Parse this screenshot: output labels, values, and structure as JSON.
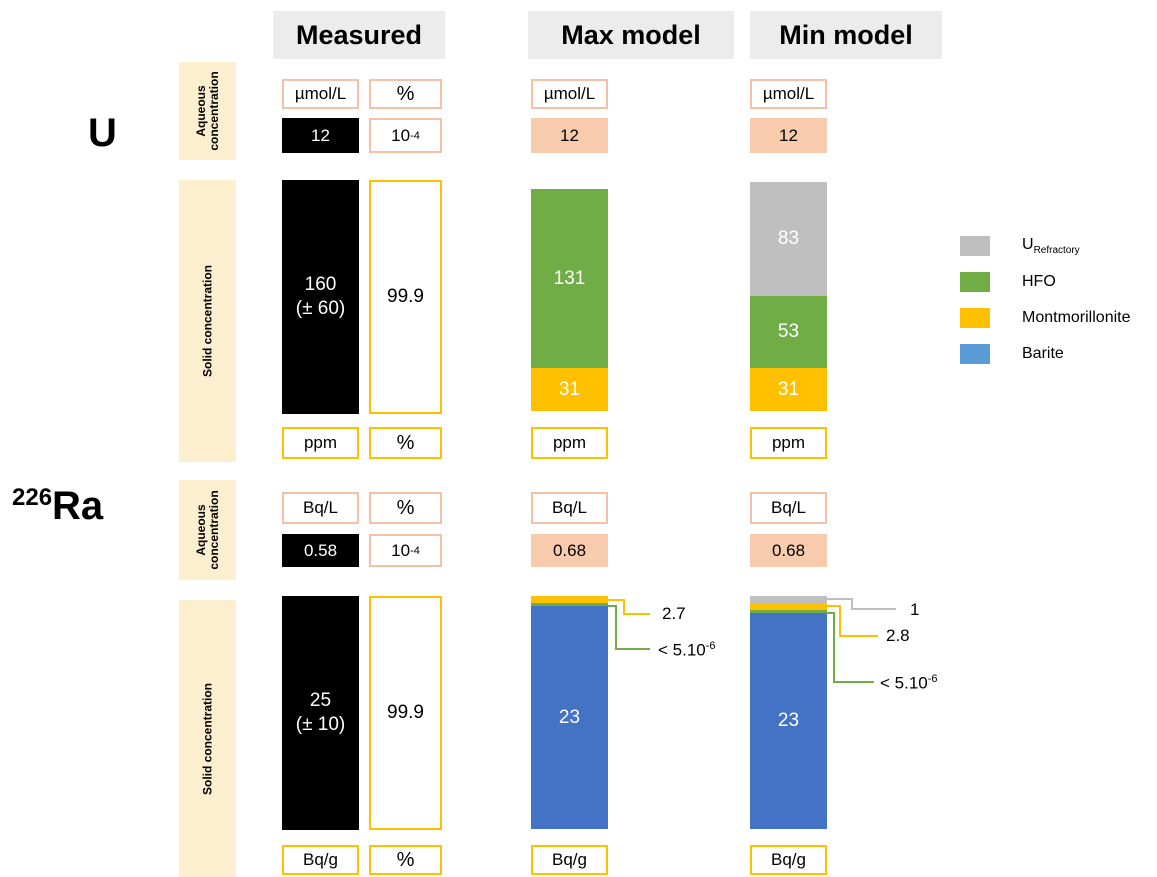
{
  "columns": {
    "measured": "Measured",
    "max": "Max model",
    "min": "Min model"
  },
  "elements": {
    "u": "U",
    "ra_mass": "226",
    "ra_symbol": "Ra"
  },
  "row_labels": {
    "aqueous_line1": "Aqueous",
    "aqueous_line2": "concentration",
    "solid": "Solid concentration"
  },
  "units": {
    "umol": "µmol/L",
    "percent": "%",
    "ppm": "ppm",
    "bql": "Bq/L",
    "bqg": "Bq/g"
  },
  "u": {
    "aqueous": {
      "measured": "12",
      "percent_base": "10",
      "percent_exp": "-4",
      "max": "12",
      "min": "12"
    },
    "solid": {
      "measured_value": "160",
      "measured_err": "(± 60)",
      "percent": "99.9",
      "max": [
        {
          "component": "Montmorillonite",
          "value": 31
        },
        {
          "component": "HFO",
          "value": 131
        }
      ],
      "min": [
        {
          "component": "Montmorillonite",
          "value": 31
        },
        {
          "component": "HFO",
          "value": 53
        },
        {
          "component": "URefractory",
          "value": 83
        }
      ]
    }
  },
  "ra": {
    "aqueous": {
      "measured": "0.58",
      "percent_base": "10",
      "percent_exp": "-4",
      "max": "0.68",
      "min": "0.68"
    },
    "solid": {
      "measured_value": "25",
      "measured_err": "(± 10)",
      "percent": "99.9",
      "max_barite": "23",
      "min_barite": "23",
      "max_annotations": {
        "montmorillonite": "2.7",
        "hfo_base": "< 5.10",
        "hfo_exp": "-6"
      },
      "min_annotations": {
        "refractory": "1",
        "montmorillonite": "2.8",
        "hfo_base": "< 5.10",
        "hfo_exp": "-6"
      }
    }
  },
  "legend": [
    {
      "name": "U",
      "sub": "Refractory",
      "color": "#bfbfbf"
    },
    {
      "name": "HFO",
      "sub": "",
      "color": "#70ad47"
    },
    {
      "name": "Montmorillonite",
      "sub": "",
      "color": "#ffc000"
    },
    {
      "name": "Barite",
      "sub": "",
      "color": "#5b9bd5"
    }
  ],
  "colors": {
    "refractory": "#bfbfbf",
    "hfo": "#70ad47",
    "montmorillonite": "#ffc000",
    "barite": "#4472c4",
    "pink_border": "#f4c1a6",
    "peach_fill": "#f8cbad",
    "row_band": "#fcefcf"
  }
}
